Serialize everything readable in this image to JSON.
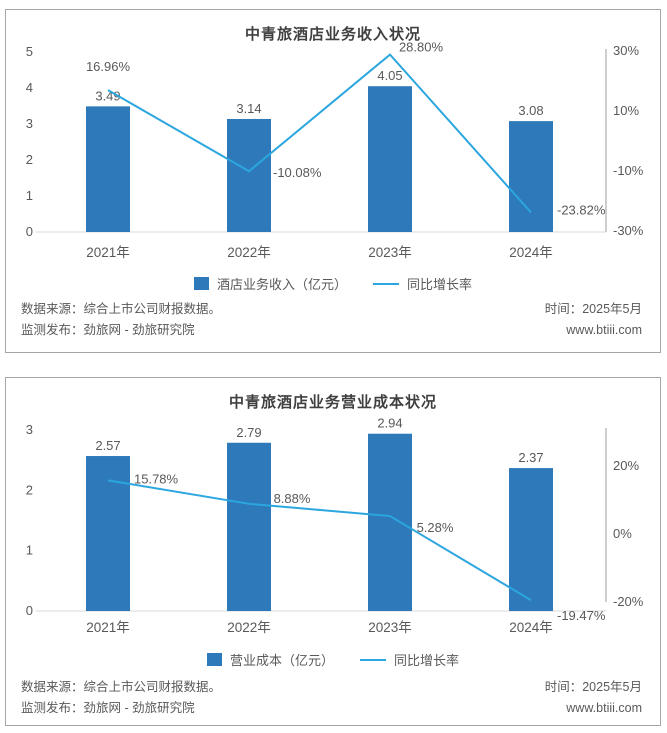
{
  "colors": {
    "bar": "#2E79B9",
    "line": "#2BA6DF",
    "text": "#595959",
    "title": "#404040",
    "baseline": "#d9d9d9",
    "right_axis_line": "#9e9e9e",
    "panel_border": "#a6a6a6"
  },
  "footer": {
    "source_line": "数据来源：综合上市公司财报数据。",
    "publisher_line": "监测发布：劲旅网 - 劲旅研究院",
    "time_label": "时间：2025年5月",
    "website": "www.btiii.com"
  },
  "chart_data": [
    {
      "type": "bar+line",
      "title": "中青旅酒店业务收入状况",
      "categories": [
        "2021年",
        "2022年",
        "2023年",
        "2024年"
      ],
      "series": [
        {
          "name": "酒店业务收入（亿元）",
          "type": "bar",
          "values": [
            3.49,
            3.14,
            4.05,
            3.08
          ],
          "labels": [
            "3.49",
            "3.14",
            "4.05",
            "3.08"
          ]
        },
        {
          "name": "同比增长率",
          "type": "line",
          "values": [
            16.96,
            -10.08,
            28.8,
            -23.82
          ],
          "labels": [
            "16.96%",
            "-10.08%",
            "28.80%",
            "-23.82%"
          ]
        }
      ],
      "left_axis": {
        "ticks": [
          5,
          4,
          3,
          2,
          1,
          0
        ],
        "min": 0,
        "max": 5
      },
      "right_axis": {
        "ticks": [
          "30%",
          "10%",
          "-10%",
          "-30%"
        ],
        "tick_values": [
          30,
          10,
          -10,
          -30
        ],
        "min": -30,
        "max": 30
      },
      "grid": "off",
      "legend_position": "bottom"
    },
    {
      "type": "bar+line",
      "title": "中青旅酒店业务营业成本状况",
      "categories": [
        "2021年",
        "2022年",
        "2023年",
        "2024年"
      ],
      "series": [
        {
          "name": "营业成本（亿元）",
          "type": "bar",
          "values": [
            2.57,
            2.79,
            2.94,
            2.37
          ],
          "labels": [
            "2.57",
            "2.79",
            "2.94",
            "2.37"
          ]
        },
        {
          "name": "同比增长率",
          "type": "line",
          "values": [
            15.78,
            8.88,
            5.28,
            -19.47
          ],
          "labels": [
            "15.78%",
            "8.88%",
            "5.28%",
            "-19.47%"
          ]
        }
      ],
      "left_axis": {
        "ticks": [
          3,
          2,
          1,
          0
        ],
        "min": 0,
        "max": 3
      },
      "right_axis": {
        "ticks": [
          "20%",
          "0%",
          "-20%"
        ],
        "tick_values": [
          20,
          0,
          -20
        ],
        "min": -20,
        "max": 20
      },
      "grid": "off",
      "legend_position": "bottom"
    }
  ]
}
